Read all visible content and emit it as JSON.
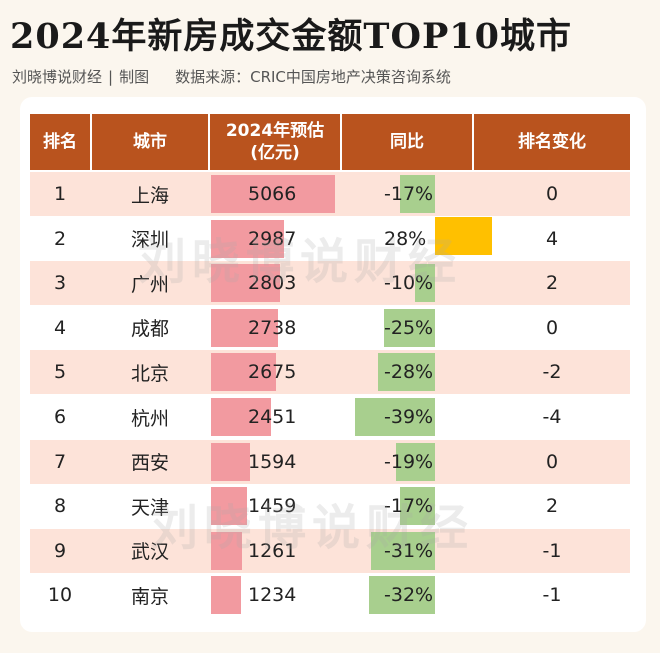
{
  "title": "2024年新房成交金额TOP10城市",
  "byline": {
    "author": "刘晓博说财经",
    "sep": "|",
    "role": "制图",
    "source": "数据来源：CRIC中国房地产决策咨询系统"
  },
  "watermark": "刘晓博说财经",
  "colors": {
    "header": "#b9531e",
    "alt_row": "#fde3d9",
    "value_bar": "#f29aa0",
    "yoy_negative": "#a8cf8e",
    "yoy_positive": "#ffc000"
  },
  "chart_data": {
    "type": "table",
    "title": "2024年新房成交金额TOP10城市",
    "columns": [
      "排名",
      "城市",
      "2024年预估\n(亿元)",
      "同比",
      "排名变化"
    ],
    "rows": [
      {
        "rank": "1",
        "city": "上海",
        "value": 5066,
        "value_label": "5066",
        "yoy": -17,
        "yoy_label": "-17%",
        "change": "0"
      },
      {
        "rank": "2",
        "city": "深圳",
        "value": 2987,
        "value_label": "2987",
        "yoy": 28,
        "yoy_label": "28%",
        "change": "4"
      },
      {
        "rank": "3",
        "city": "广州",
        "value": 2803,
        "value_label": "2803",
        "yoy": -10,
        "yoy_label": "-10%",
        "change": "2"
      },
      {
        "rank": "4",
        "city": "成都",
        "value": 2738,
        "value_label": "2738",
        "yoy": -25,
        "yoy_label": "-25%",
        "change": "0"
      },
      {
        "rank": "5",
        "city": "北京",
        "value": 2675,
        "value_label": "2675",
        "yoy": -28,
        "yoy_label": "-28%",
        "change": "-2"
      },
      {
        "rank": "6",
        "city": "杭州",
        "value": 2451,
        "value_label": "2451",
        "yoy": -39,
        "yoy_label": "-39%",
        "change": "-4"
      },
      {
        "rank": "7",
        "city": "西安",
        "value": 1594,
        "value_label": "1594",
        "yoy": -19,
        "yoy_label": "-19%",
        "change": "0"
      },
      {
        "rank": "8",
        "city": "天津",
        "value": 1459,
        "value_label": "1459",
        "yoy": -17,
        "yoy_label": "-17%",
        "change": "2"
      },
      {
        "rank": "9",
        "city": "武汉",
        "value": 1261,
        "value_label": "1261",
        "yoy": -31,
        "yoy_label": "-31%",
        "change": "-1"
      },
      {
        "rank": "10",
        "city": "南京",
        "value": 1234,
        "value_label": "1234",
        "yoy": -32,
        "yoy_label": "-32%",
        "change": "-1"
      }
    ]
  }
}
